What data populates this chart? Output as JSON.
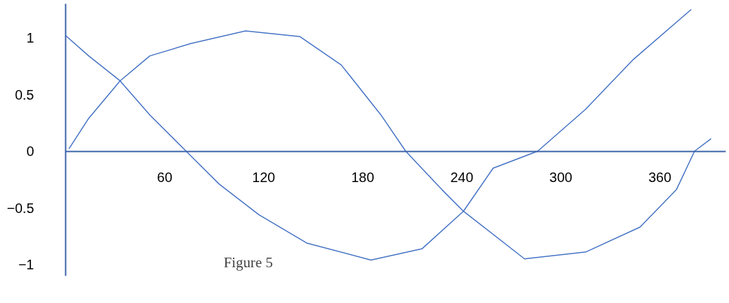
{
  "chart_data": {
    "type": "line",
    "annotations": [
      "Figure 5"
    ],
    "xlim": [
      0,
      400
    ],
    "ylim": [
      -1.1,
      1.3
    ],
    "xticks": [
      60,
      120,
      180,
      240,
      300,
      360
    ],
    "yticks": [
      -1,
      -0.5,
      0,
      0.5,
      1
    ],
    "grid": false,
    "marker": "none",
    "line_style": "solid",
    "series": [
      {
        "color": "#4472c4",
        "x": [
          0,
          14,
          33,
          51,
          73,
          93,
          117,
          146,
          185,
          216,
          241,
          259,
          286,
          315,
          344,
          379
        ],
        "values": [
          1.02,
          0.84,
          0.62,
          0.32,
          0,
          -0.29,
          -0.56,
          -0.81,
          -0.96,
          -0.86,
          -0.53,
          -0.15,
          0,
          0.37,
          0.81,
          1.25
        ]
      },
      {
        "color": "#4472c4",
        "x": [
          2,
          14,
          33,
          51,
          76,
          109,
          142,
          167,
          191,
          206,
          228,
          241,
          278,
          315,
          348,
          370,
          381,
          391
        ],
        "values": [
          0.02,
          0.29,
          0.62,
          0.84,
          0.95,
          1.06,
          1.01,
          0.76,
          0.32,
          0,
          -0.34,
          -0.53,
          -0.95,
          -0.89,
          -0.67,
          -0.34,
          0,
          0.11
        ]
      }
    ]
  }
}
